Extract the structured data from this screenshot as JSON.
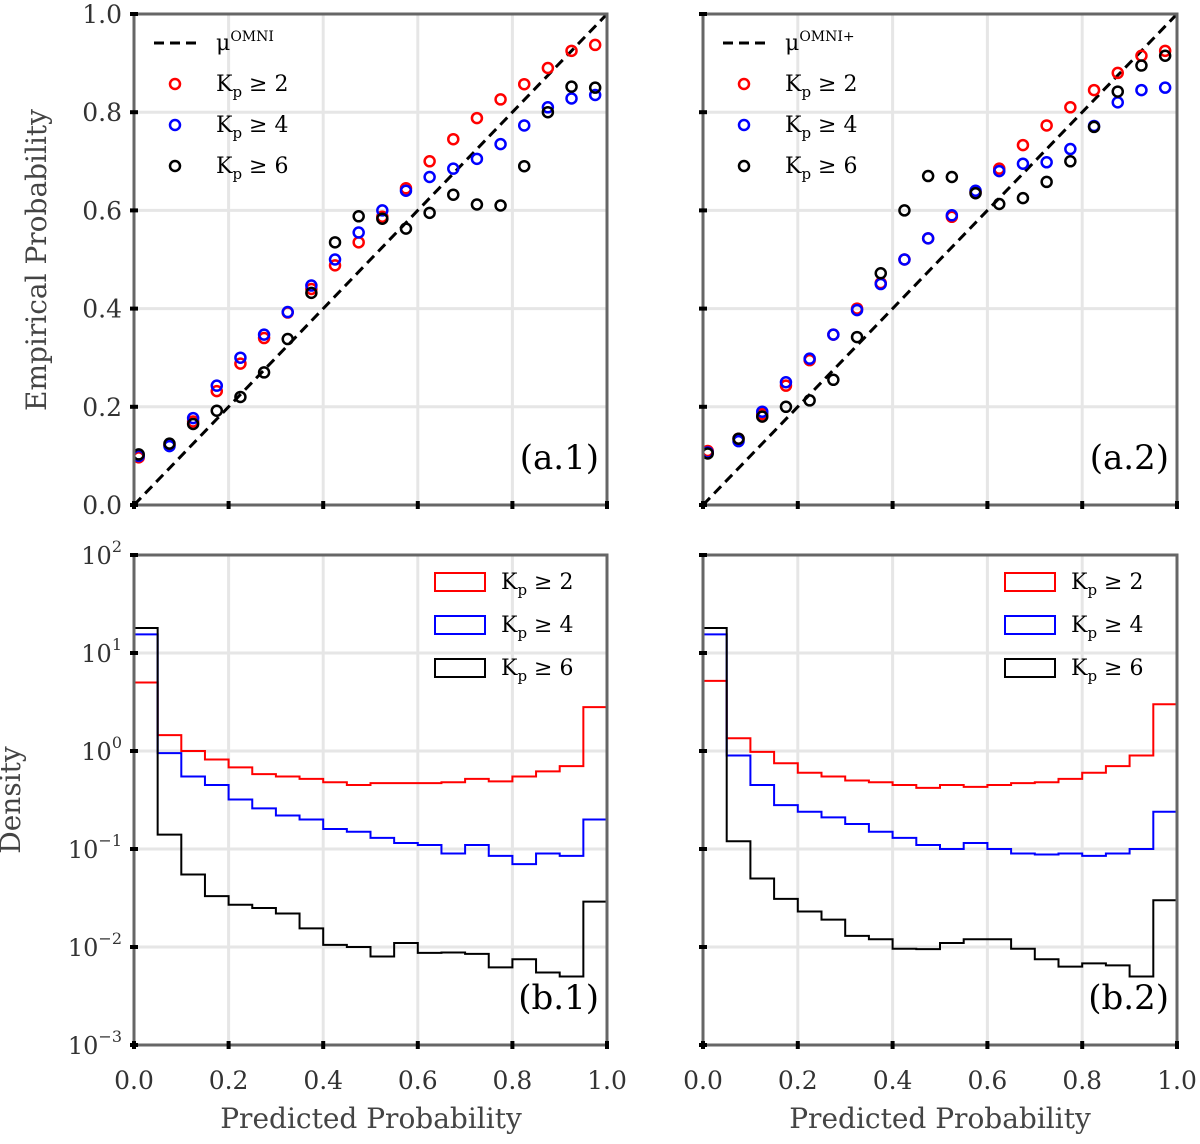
{
  "figure": {
    "xlabel": "Predicted Probability",
    "top_ylabel": "Empirical Probability",
    "bottom_ylabel": "Density",
    "top_yticks": [
      "0.0",
      "0.2",
      "0.4",
      "0.6",
      "0.8",
      "1.0"
    ],
    "bottom_yticks": [
      "10",
      "10",
      "10",
      "10",
      "10",
      "10"
    ],
    "bottom_ytick_exponents": [
      "−3",
      "−2",
      "−1",
      "0",
      "1",
      "2"
    ],
    "xticks": [
      "0.0",
      "0.2",
      "0.4",
      "0.6",
      "0.8",
      "1.0"
    ],
    "colors": {
      "kp2": "#ff0000",
      "kp4": "#0000ff",
      "kp6": "#000000",
      "axes": "#666666",
      "grid": "#e6e6e6"
    }
  },
  "chart_data": [
    {
      "id": "a1",
      "type": "scatter",
      "panel_label": "(a.1)",
      "xlabel": "",
      "ylabel": "Empirical Probability",
      "xlim": [
        0,
        1
      ],
      "ylim": [
        0,
        1
      ],
      "grid": true,
      "legend_position": "top-left",
      "reference_line": {
        "name": "μ",
        "superscript": "OMNI",
        "x": [
          0,
          1
        ],
        "y": [
          0,
          1
        ],
        "style": "dashed"
      },
      "x": [
        0.01,
        0.075,
        0.125,
        0.175,
        0.225,
        0.275,
        0.325,
        0.375,
        0.425,
        0.475,
        0.525,
        0.575,
        0.625,
        0.675,
        0.725,
        0.775,
        0.825,
        0.875,
        0.925,
        0.975
      ],
      "series": [
        {
          "name": "K",
          "subscript": "p",
          "rel": "≥ 2",
          "color": "#ff0000",
          "values": [
            0.097,
            0.122,
            0.17,
            0.232,
            0.288,
            0.34,
            0.392,
            0.44,
            0.488,
            0.535,
            0.587,
            0.645,
            0.7,
            0.745,
            0.788,
            0.826,
            0.857,
            0.89,
            0.925,
            0.937
          ]
        },
        {
          "name": "K",
          "subscript": "p",
          "rel": "≥ 4",
          "color": "#0000ff",
          "values": [
            0.1,
            0.12,
            0.177,
            0.243,
            0.3,
            0.347,
            0.393,
            0.447,
            0.5,
            0.555,
            0.6,
            0.64,
            0.668,
            0.685,
            0.705,
            0.735,
            0.773,
            0.81,
            0.828,
            0.835
          ]
        },
        {
          "name": "K",
          "subscript": "p",
          "rel": "≥ 6",
          "color": "#000000",
          "values": [
            0.103,
            0.125,
            0.165,
            0.192,
            0.22,
            0.27,
            0.338,
            0.432,
            0.535,
            0.588,
            0.583,
            0.563,
            0.595,
            0.632,
            0.612,
            0.61,
            0.69,
            0.8,
            0.852,
            0.85
          ]
        }
      ]
    },
    {
      "id": "a2",
      "type": "scatter",
      "panel_label": "(a.2)",
      "xlabel": "",
      "ylabel": "",
      "xlim": [
        0,
        1
      ],
      "ylim": [
        0,
        1
      ],
      "grid": true,
      "legend_position": "top-left",
      "reference_line": {
        "name": "μ",
        "superscript": "OMNI+",
        "x": [
          0,
          1
        ],
        "y": [
          0,
          1
        ],
        "style": "dashed"
      },
      "x": [
        0.01,
        0.075,
        0.125,
        0.175,
        0.225,
        0.275,
        0.325,
        0.375,
        0.425,
        0.475,
        0.525,
        0.575,
        0.625,
        0.675,
        0.725,
        0.775,
        0.825,
        0.875,
        0.925,
        0.975
      ],
      "series": [
        {
          "name": "K",
          "subscript": "p",
          "rel": "≥ 2",
          "color": "#ff0000",
          "values": [
            0.11,
            0.135,
            0.185,
            0.243,
            0.295,
            0.347,
            0.4,
            0.452,
            0.5,
            0.543,
            0.587,
            0.637,
            0.685,
            0.733,
            0.773,
            0.81,
            0.845,
            0.88,
            0.915,
            0.925
          ]
        },
        {
          "name": "K",
          "subscript": "p",
          "rel": "≥ 4",
          "color": "#0000ff",
          "values": [
            0.107,
            0.13,
            0.19,
            0.25,
            0.298,
            0.347,
            0.397,
            0.45,
            0.5,
            0.543,
            0.59,
            0.64,
            0.68,
            0.695,
            0.698,
            0.725,
            0.772,
            0.82,
            0.845,
            0.85
          ]
        },
        {
          "name": "K",
          "subscript": "p",
          "rel": "≥ 6",
          "color": "#000000",
          "values": [
            0.105,
            0.135,
            0.18,
            0.2,
            0.213,
            0.255,
            0.342,
            0.472,
            0.6,
            0.67,
            0.668,
            0.635,
            0.613,
            0.625,
            0.658,
            0.7,
            0.77,
            0.842,
            0.895,
            0.915
          ]
        }
      ]
    },
    {
      "id": "b1",
      "type": "histogram",
      "panel_label": "(b.1)",
      "xlabel": "Predicted Probability",
      "ylabel": "Density",
      "xlim": [
        0,
        1
      ],
      "ylim": [
        0.001,
        100
      ],
      "yscale": "log",
      "grid": true,
      "legend_position": "top-right",
      "bin_edges": [
        0,
        0.05,
        0.1,
        0.15,
        0.2,
        0.25,
        0.3,
        0.35,
        0.4,
        0.45,
        0.5,
        0.55,
        0.6,
        0.65,
        0.7,
        0.75,
        0.8,
        0.85,
        0.9,
        0.95,
        1.0
      ],
      "series": [
        {
          "name": "K",
          "subscript": "p",
          "rel": "≥ 2",
          "color": "#ff0000",
          "values": [
            5.0,
            1.45,
            1.0,
            0.82,
            0.68,
            0.58,
            0.55,
            0.52,
            0.48,
            0.45,
            0.47,
            0.47,
            0.47,
            0.48,
            0.52,
            0.49,
            0.55,
            0.62,
            0.7,
            2.8
          ]
        },
        {
          "name": "K",
          "subscript": "p",
          "rel": "≥ 4",
          "color": "#0000ff",
          "values": [
            15.5,
            0.95,
            0.55,
            0.45,
            0.32,
            0.26,
            0.22,
            0.2,
            0.16,
            0.15,
            0.13,
            0.115,
            0.11,
            0.09,
            0.11,
            0.085,
            0.07,
            0.09,
            0.085,
            0.2
          ]
        },
        {
          "name": "K",
          "subscript": "p",
          "rel": "≥ 6",
          "color": "#000000",
          "values": [
            18.0,
            0.14,
            0.055,
            0.033,
            0.027,
            0.025,
            0.022,
            0.0155,
            0.0105,
            0.01,
            0.008,
            0.011,
            0.0087,
            0.0088,
            0.0085,
            0.0062,
            0.0075,
            0.0055,
            0.005,
            0.029
          ]
        }
      ]
    },
    {
      "id": "b2",
      "type": "histogram",
      "panel_label": "(b.2)",
      "xlabel": "Predicted Probability",
      "ylabel": "",
      "xlim": [
        0,
        1
      ],
      "ylim": [
        0.001,
        100
      ],
      "yscale": "log",
      "grid": true,
      "legend_position": "top-right",
      "bin_edges": [
        0,
        0.05,
        0.1,
        0.15,
        0.2,
        0.25,
        0.3,
        0.35,
        0.4,
        0.45,
        0.5,
        0.55,
        0.6,
        0.65,
        0.7,
        0.75,
        0.8,
        0.85,
        0.9,
        0.95,
        1.0
      ],
      "series": [
        {
          "name": "K",
          "subscript": "p",
          "rel": "≥ 2",
          "color": "#ff0000",
          "values": [
            5.2,
            1.35,
            0.98,
            0.75,
            0.6,
            0.55,
            0.5,
            0.48,
            0.45,
            0.42,
            0.45,
            0.43,
            0.45,
            0.47,
            0.48,
            0.52,
            0.6,
            0.7,
            0.9,
            3.0
          ]
        },
        {
          "name": "K",
          "subscript": "p",
          "rel": "≥ 4",
          "color": "#0000ff",
          "values": [
            15.5,
            0.9,
            0.45,
            0.28,
            0.24,
            0.21,
            0.18,
            0.15,
            0.13,
            0.11,
            0.1,
            0.115,
            0.1,
            0.09,
            0.088,
            0.09,
            0.085,
            0.09,
            0.1,
            0.24
          ]
        },
        {
          "name": "K",
          "subscript": "p",
          "rel": "≥ 6",
          "color": "#000000",
          "values": [
            18.0,
            0.12,
            0.05,
            0.031,
            0.023,
            0.019,
            0.013,
            0.012,
            0.0096,
            0.0095,
            0.011,
            0.012,
            0.012,
            0.0096,
            0.0075,
            0.0063,
            0.0068,
            0.0065,
            0.005,
            0.03
          ]
        }
      ]
    }
  ]
}
